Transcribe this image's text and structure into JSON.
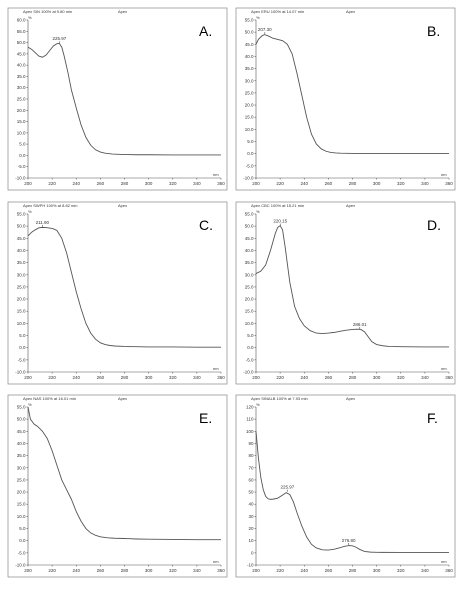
{
  "figure": {
    "panels": [
      {
        "letter": "A.",
        "header_left": "Apex SIN 100% at 9.80 min",
        "header_mid": "Apex",
        "unit_y": "%",
        "unit_x": "nm"
      },
      {
        "letter": "B.",
        "header_left": "Apex ERU 100% at 14.07 min",
        "header_mid": "Apex",
        "unit_y": "%",
        "unit_x": "nm"
      },
      {
        "letter": "C.",
        "header_left": "Apex SWPH 100% at 8.82 min",
        "header_mid": "Apex",
        "unit_y": "%",
        "unit_x": "nm"
      },
      {
        "letter": "D.",
        "header_left": "Apex CBC 100% at 15.21 min",
        "header_mid": "Apex",
        "unit_y": "%",
        "unit_x": "nm"
      },
      {
        "letter": "E.",
        "header_left": "Apex NAS 100% at 16.01 min",
        "header_mid": "Apex",
        "unit_y": "%",
        "unit_x": "nm"
      },
      {
        "letter": "F.",
        "header_left": "Apex SINALB 100% at 7.93 min",
        "header_mid": "Apex",
        "unit_y": "%",
        "unit_x": "nm"
      }
    ]
  },
  "chart_data": [
    {
      "type": "line",
      "title": "",
      "xlabel": "nm",
      "ylabel": "%",
      "xlim": [
        200,
        360
      ],
      "ylim": [
        -10,
        60
      ],
      "yticks": [
        "-10.0",
        "-5.0",
        "0.0",
        "5.0",
        "10.0",
        "15.0",
        "20.0",
        "25.0",
        "30.0",
        "35.0",
        "40.0",
        "45.0",
        "50.0",
        "55.0",
        "60.0"
      ],
      "xticks": [
        "200",
        "220",
        "240",
        "260",
        "280",
        "300",
        "320",
        "340",
        "360"
      ],
      "annotations": [
        {
          "x": 225.97,
          "y": 49.5,
          "label": "225.97"
        }
      ],
      "series": [
        {
          "x": [
            200,
            203,
            206,
            209,
            212,
            215,
            218,
            221,
            224,
            226,
            228,
            230,
            233,
            236,
            240,
            244,
            248,
            252,
            256,
            260,
            264,
            270,
            280,
            290,
            300,
            320,
            340,
            360
          ],
          "y": [
            48,
            47,
            45.5,
            44,
            43.5,
            44.5,
            46.5,
            48.5,
            49.5,
            49.6,
            48,
            44,
            37,
            29,
            21,
            13.5,
            8,
            4.5,
            2.5,
            1.5,
            1,
            0.6,
            0.4,
            0.3,
            0.3,
            0.2,
            0.2,
            0.2
          ]
        }
      ]
    },
    {
      "type": "line",
      "title": "",
      "xlabel": "nm",
      "ylabel": "%",
      "xlim": [
        200,
        360
      ],
      "ylim": [
        -10,
        55
      ],
      "yticks": [
        "-10.0",
        "-5.0",
        "0.0",
        "5.0",
        "10.0",
        "15.0",
        "20.0",
        "25.0",
        "30.0",
        "35.0",
        "40.0",
        "45.0",
        "50.0",
        "55.0"
      ],
      "xticks": [
        "200",
        "220",
        "240",
        "260",
        "280",
        "300",
        "320",
        "340",
        "360"
      ],
      "annotations": [
        {
          "x": 207.3,
          "y": 49,
          "label": "207.30"
        }
      ],
      "series": [
        {
          "x": [
            200,
            202,
            205,
            207,
            210,
            214,
            218,
            222,
            226,
            230,
            234,
            238,
            242,
            246,
            250,
            254,
            258,
            262,
            266,
            270,
            280,
            290,
            300,
            320,
            340,
            360
          ],
          "y": [
            45,
            47,
            48.5,
            49,
            48.5,
            47.5,
            47,
            46.5,
            45,
            41,
            33,
            24,
            15,
            8,
            4,
            2,
            1,
            0.5,
            0.3,
            0.2,
            0.1,
            0.1,
            0.1,
            0.1,
            0.1,
            0.1
          ]
        }
      ]
    },
    {
      "type": "line",
      "title": "",
      "xlabel": "nm",
      "ylabel": "%",
      "xlim": [
        200,
        360
      ],
      "ylim": [
        -10,
        55
      ],
      "yticks": [
        "-10.0",
        "-5.0",
        "0.0",
        "5.0",
        "10.0",
        "15.0",
        "20.0",
        "25.0",
        "30.0",
        "35.0",
        "40.0",
        "45.0",
        "50.0",
        "55.0"
      ],
      "xticks": [
        "200",
        "220",
        "240",
        "260",
        "280",
        "300",
        "320",
        "340",
        "360"
      ],
      "annotations": [
        {
          "x": 211.9,
          "y": 49.5,
          "label": "211.90"
        }
      ],
      "series": [
        {
          "x": [
            200,
            203,
            206,
            209,
            212,
            215,
            218,
            221,
            224,
            228,
            232,
            236,
            240,
            244,
            248,
            252,
            256,
            260,
            264,
            268,
            272,
            280,
            290,
            300,
            320,
            340,
            360
          ],
          "y": [
            46,
            47.5,
            48.5,
            49.3,
            49.5,
            49.4,
            49.2,
            48.9,
            48.2,
            45,
            39,
            31,
            23,
            16,
            10,
            6,
            3.5,
            2,
            1.3,
            0.9,
            0.7,
            0.5,
            0.4,
            0.3,
            0.3,
            0.2,
            0.2
          ]
        }
      ]
    },
    {
      "type": "line",
      "title": "",
      "xlabel": "nm",
      "ylabel": "%",
      "xlim": [
        200,
        360
      ],
      "ylim": [
        -10,
        55
      ],
      "yticks": [
        "-10.0",
        "-5.0",
        "0.0",
        "5.0",
        "10.0",
        "15.0",
        "20.0",
        "25.0",
        "30.0",
        "35.0",
        "40.0",
        "45.0",
        "50.0",
        "55.0"
      ],
      "xticks": [
        "200",
        "220",
        "240",
        "260",
        "280",
        "300",
        "320",
        "340",
        "360"
      ],
      "annotations": [
        {
          "x": 220.15,
          "y": 50,
          "label": "220.15"
        },
        {
          "x": 286.01,
          "y": 7.5,
          "label": "286.01"
        }
      ],
      "series": [
        {
          "x": [
            200,
            204,
            208,
            212,
            216,
            218,
            220,
            222,
            224,
            228,
            232,
            236,
            240,
            245,
            250,
            255,
            260,
            265,
            270,
            275,
            280,
            284,
            287,
            290,
            293,
            296,
            300,
            305,
            310,
            320,
            340,
            360
          ],
          "y": [
            30.5,
            31.5,
            34,
            40,
            47,
            49.5,
            50.2,
            48.5,
            42,
            27,
            17,
            12,
            9,
            7,
            6,
            5.8,
            6,
            6.3,
            6.8,
            7.2,
            7.5,
            7.6,
            7.5,
            6.5,
            4.5,
            2.5,
            1.3,
            0.8,
            0.5,
            0.4,
            0.3,
            0.3
          ]
        }
      ]
    },
    {
      "type": "line",
      "title": "",
      "xlabel": "nm",
      "ylabel": "%",
      "xlim": [
        200,
        360
      ],
      "ylim": [
        -10,
        55
      ],
      "yticks": [
        "-10.0",
        "-5.0",
        "0.0",
        "5.0",
        "10.0",
        "15.0",
        "20.0",
        "25.0",
        "30.0",
        "35.0",
        "40.0",
        "45.0",
        "50.0",
        "55.0"
      ],
      "xticks": [
        "200",
        "220",
        "240",
        "260",
        "280",
        "300",
        "320",
        "340",
        "360"
      ],
      "annotations": [],
      "series": [
        {
          "x": [
            200,
            202,
            205,
            208,
            212,
            216,
            220,
            224,
            228,
            232,
            236,
            240,
            244,
            248,
            252,
            256,
            260,
            266,
            272,
            280,
            290,
            300,
            320,
            340,
            360
          ],
          "y": [
            55,
            50,
            48,
            47,
            45,
            42,
            37,
            31,
            25,
            21,
            17,
            12,
            8,
            5,
            3.2,
            2.2,
            1.6,
            1.2,
            1,
            0.9,
            0.7,
            0.6,
            0.5,
            0.4,
            0.4
          ]
        }
      ]
    },
    {
      "type": "line",
      "title": "",
      "xlabel": "nm",
      "ylabel": "%",
      "xlim": [
        200,
        360
      ],
      "ylim": [
        -10,
        120
      ],
      "yticks": [
        "-10",
        "0",
        "10",
        "20",
        "30",
        "40",
        "50",
        "60",
        "70",
        "80",
        "90",
        "100",
        "110",
        "120"
      ],
      "xticks": [
        "200",
        "220",
        "240",
        "260",
        "280",
        "300",
        "320",
        "340",
        "360"
      ],
      "annotations": [
        {
          "x": 225.97,
          "y": 50,
          "label": "225.97"
        },
        {
          "x": 276.8,
          "y": 6,
          "label": "276.80"
        }
      ],
      "series": [
        {
          "x": [
            200,
            202,
            204,
            206,
            208,
            210,
            212,
            215,
            218,
            222,
            225,
            228,
            231,
            234,
            238,
            242,
            246,
            250,
            255,
            260,
            265,
            270,
            273,
            277,
            280,
            283,
            286,
            290,
            295,
            300,
            320,
            340,
            360
          ],
          "y": [
            100,
            78,
            62,
            52,
            46.5,
            44.5,
            44,
            44.3,
            45,
            47.5,
            49.5,
            48,
            42,
            33,
            22,
            13,
            7,
            4,
            2.5,
            2.3,
            3,
            4.3,
            5.3,
            6,
            5.8,
            4.6,
            2.8,
            1.2,
            0.6,
            0.4,
            0.3,
            0.3,
            0.3
          ]
        }
      ]
    }
  ]
}
